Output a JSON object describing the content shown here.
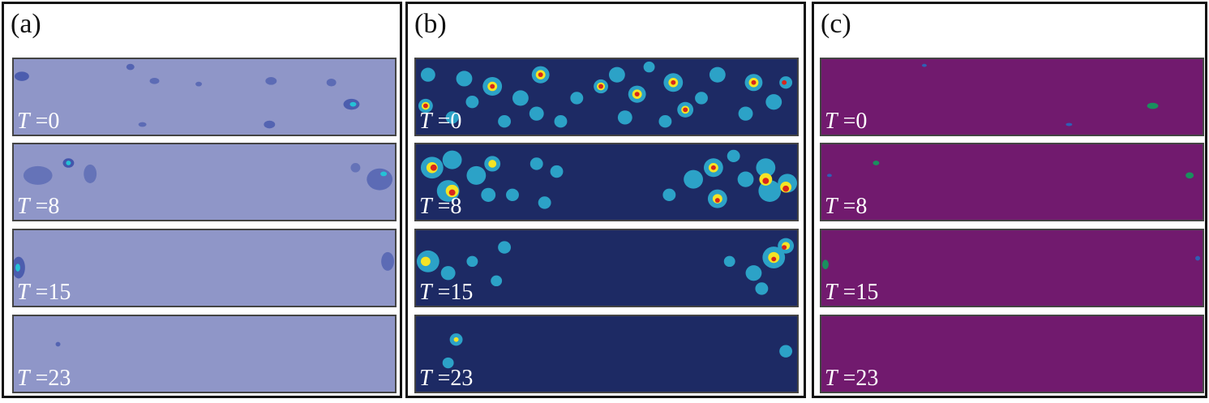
{
  "panels": [
    {
      "label": "(a)",
      "background": "#8f96c8",
      "spot": "#3b4fa8",
      "hot": "#25c2d6",
      "strips": [
        {
          "t_prefix": "T",
          "t_value": "=0"
        },
        {
          "t_prefix": "T",
          "t_value": "=8"
        },
        {
          "t_prefix": "T",
          "t_value": "=15"
        },
        {
          "t_prefix": "T",
          "t_value": "=23"
        }
      ]
    },
    {
      "label": "(b)",
      "background": "#1d2a64",
      "spot": "#2fb7d9",
      "hot": "#d8261b",
      "strips": [
        {
          "t_prefix": "T",
          "t_value": "=0"
        },
        {
          "t_prefix": "T",
          "t_value": "=8"
        },
        {
          "t_prefix": "T",
          "t_value": "=15"
        },
        {
          "t_prefix": "T",
          "t_value": "=23"
        }
      ]
    },
    {
      "label": "(c)",
      "background": "#711a6e",
      "spot": "#2f5fb5",
      "hot": "#1a8f5e",
      "strips": [
        {
          "t_prefix": "T",
          "t_value": "=0"
        },
        {
          "t_prefix": "T",
          "t_value": "=8"
        },
        {
          "t_prefix": "T",
          "t_value": "=15"
        },
        {
          "t_prefix": "T",
          "t_value": "=23"
        }
      ]
    }
  ]
}
